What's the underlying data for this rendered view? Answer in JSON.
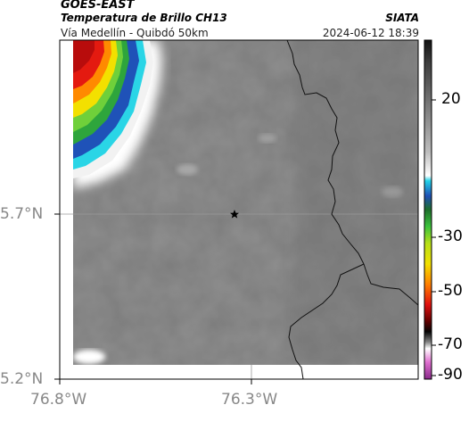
{
  "header": {
    "satellite": "GOES-EAST",
    "product": "Temperatura de Brillo CH13",
    "region": "Vía Medellín - Quibdó 50km",
    "organization": "SIATA",
    "datetime": "2024-06-12 18:39"
  },
  "axes": {
    "lat_ticks": [
      "5.7°N",
      "5.2°N"
    ],
    "lon_ticks": [
      "76.8°W",
      "76.3°W"
    ]
  },
  "colorbar": {
    "ticks": [
      "20",
      "-30",
      "-50",
      "-70",
      "-90"
    ]
  },
  "map": {
    "marker": "star-icon",
    "background_color": "#7c7c7c",
    "border_color": "#111111"
  }
}
